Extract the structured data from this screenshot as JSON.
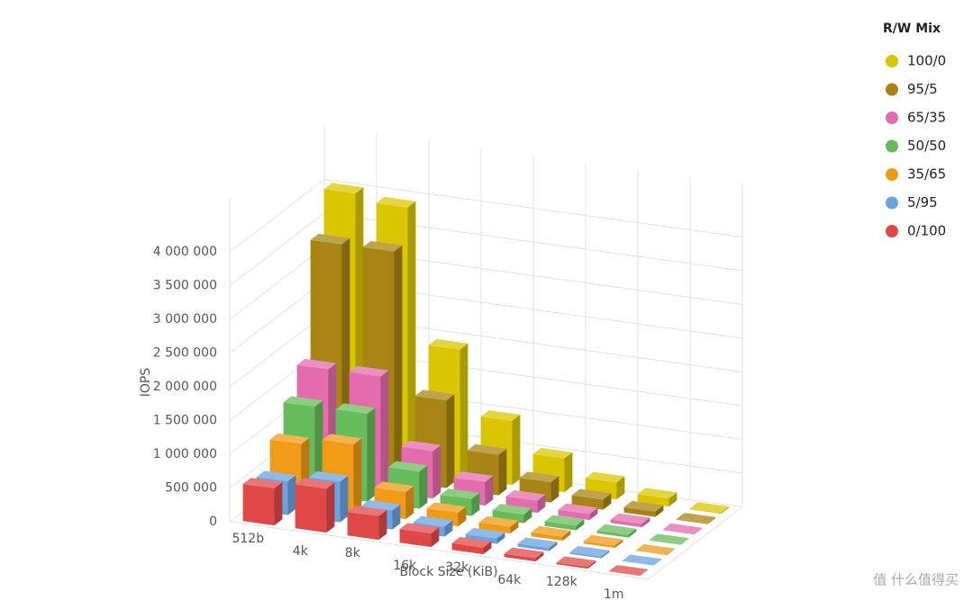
{
  "chart_data": {
    "type": "bar3d",
    "x_label": "Block Size (KiB)",
    "y_label": "IOPS",
    "legend_title": "R/W Mix",
    "legend_position": "top-right",
    "categories": [
      "512b",
      "4k",
      "8k",
      "16k",
      "32k",
      "64k",
      "128k",
      "1m"
    ],
    "series": [
      {
        "name": "100/0",
        "color": "#d9c600",
        "values": [
          4000000,
          3900000,
          1900000,
          950000,
          500000,
          250000,
          120000,
          15000
        ]
      },
      {
        "name": "95/5",
        "color": "#a88414",
        "values": [
          3400000,
          3400000,
          1300000,
          600000,
          300000,
          150000,
          80000,
          10000
        ]
      },
      {
        "name": "65/35",
        "color": "#e46cae",
        "values": [
          1700000,
          1700000,
          700000,
          350000,
          180000,
          90000,
          50000,
          8000
        ]
      },
      {
        "name": "50/50",
        "color": "#66bb5a",
        "values": [
          1300000,
          1300000,
          550000,
          250000,
          130000,
          70000,
          40000,
          7000
        ]
      },
      {
        "name": "35/65",
        "color": "#f09a17",
        "values": [
          900000,
          1000000,
          400000,
          200000,
          100000,
          60000,
          35000,
          6000
        ]
      },
      {
        "name": "5/95",
        "color": "#6aa3e0",
        "values": [
          500000,
          600000,
          280000,
          150000,
          80000,
          45000,
          25000,
          5000
        ]
      },
      {
        "name": "0/100",
        "color": "#e04848",
        "values": [
          550000,
          650000,
          350000,
          200000,
          100000,
          50000,
          25000,
          4000
        ]
      }
    ],
    "ylim": [
      0,
      4000000
    ],
    "yticks": [
      0,
      {
        "value": 500000,
        "label": "500 000"
      },
      {
        "value": 1000000,
        "label": "1 000 000"
      },
      {
        "value": 1500000,
        "label": "1 500 000"
      },
      {
        "value": 2000000,
        "label": "2 000 000"
      },
      {
        "value": 2500000,
        "label": "2 500 000"
      },
      {
        "value": 3000000,
        "label": "3 000 000"
      },
      {
        "value": 3500000,
        "label": "3 500 000"
      },
      {
        "value": 4000000,
        "label": "4 000 000"
      }
    ],
    "grid": true
  },
  "watermark": "值 什么值得买"
}
